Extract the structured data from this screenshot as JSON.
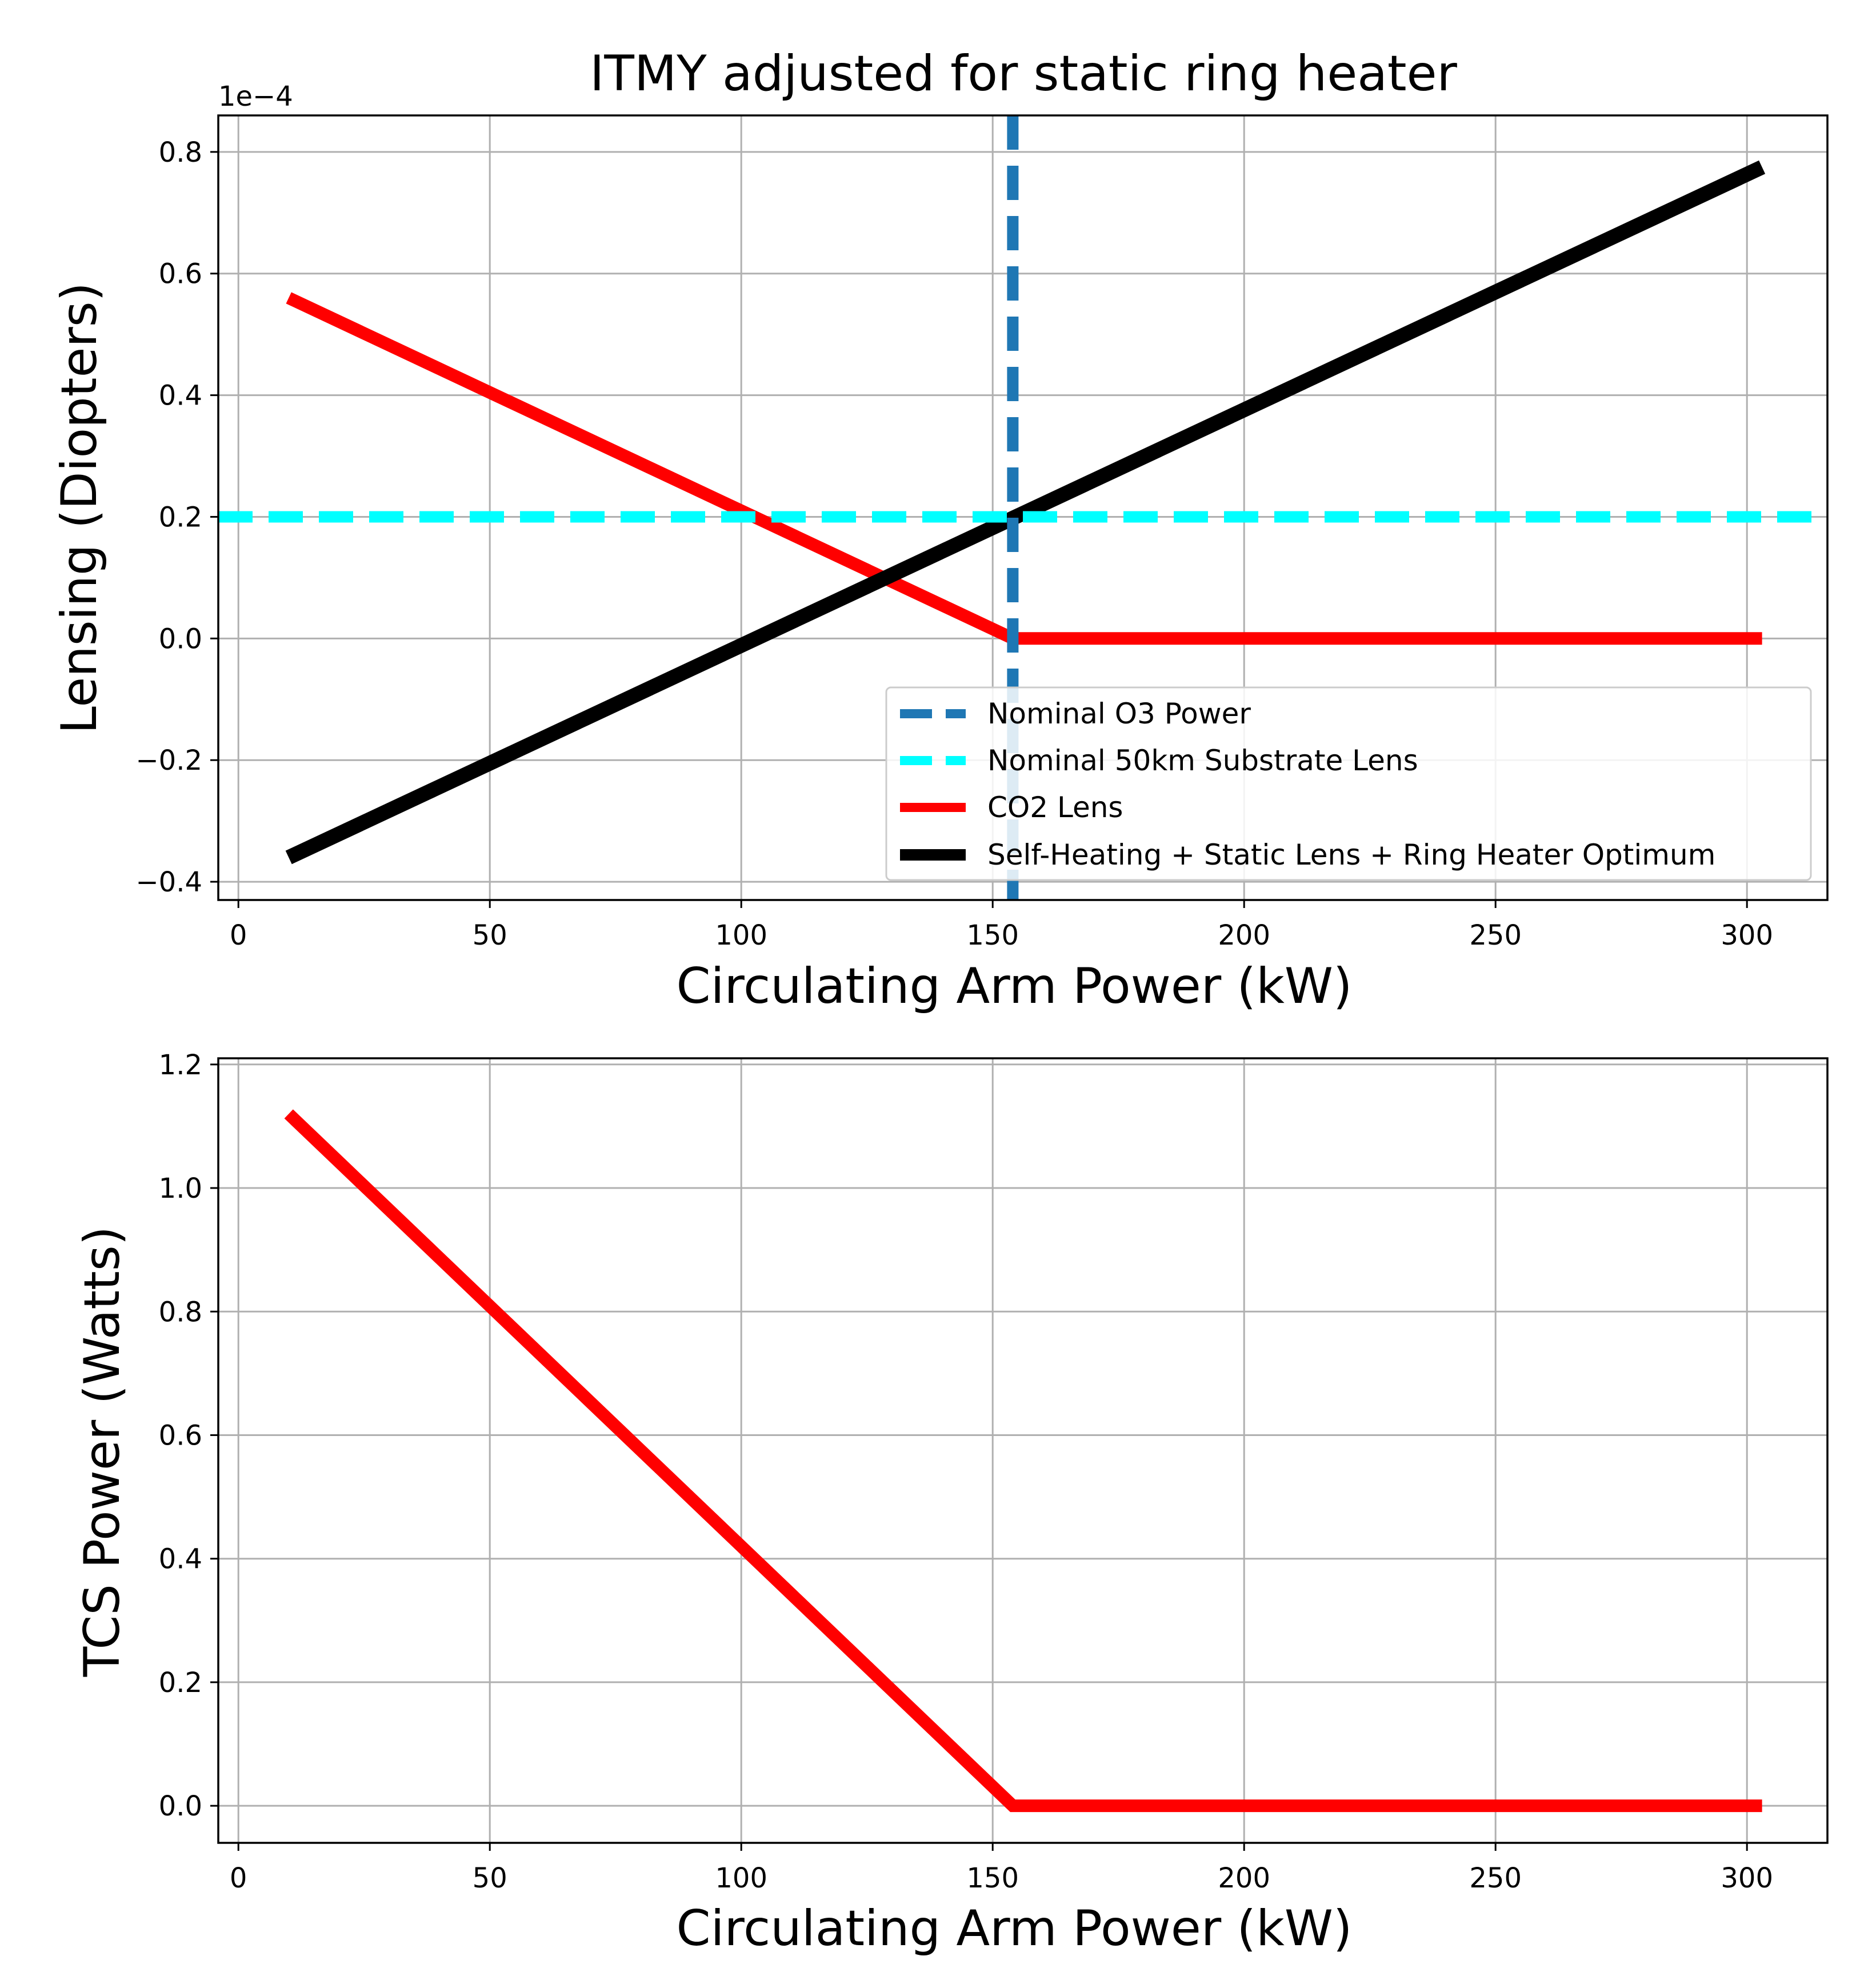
{
  "title": "ITMY adjusted for static ring heater",
  "chart_data": [
    {
      "type": "line",
      "title": "ITMY adjusted for static ring heater",
      "xlabel": "Circulating Arm Power (kW)",
      "ylabel": "Lensing (Diopters)",
      "offset_text": "1e−4",
      "xlim": [
        -4,
        316
      ],
      "ylim": [
        -0.43,
        0.86
      ],
      "xticks": [
        0,
        50,
        100,
        150,
        200,
        250,
        300
      ],
      "xtick_labels": [
        "0",
        "50",
        "100",
        "150",
        "200",
        "250",
        "300"
      ],
      "yticks": [
        -0.4,
        -0.2,
        0.0,
        0.2,
        0.4,
        0.6,
        0.8
      ],
      "ytick_labels": [
        "−0.4",
        "−0.2",
        "0.0",
        "0.2",
        "0.4",
        "0.6",
        "0.8"
      ],
      "grid": true,
      "legend_position": "lower right",
      "series": [
        {
          "name": "Nominal O3 Power",
          "kind": "vline",
          "x": 154,
          "color": "#1f77b4",
          "style": "dashed"
        },
        {
          "name": "Nominal 50km Substrate Lens",
          "kind": "hline",
          "y": 0.2,
          "color": "#00ffff",
          "style": "dashed"
        },
        {
          "name": "CO2 Lens",
          "kind": "line",
          "color": "#ff0000",
          "style": "solid",
          "x": [
            10,
            154,
            303
          ],
          "y": [
            0.56,
            0.0,
            0.0
          ]
        },
        {
          "name": "Self-Heating + Static Lens + Ring Heater Optimum",
          "kind": "line",
          "color": "#000000",
          "style": "solid",
          "x": [
            10,
            303
          ],
          "y": [
            -0.36,
            0.775
          ]
        }
      ]
    },
    {
      "type": "line",
      "title": "",
      "xlabel": "Circulating Arm Power (kW)",
      "ylabel": "TCS Power (Watts)",
      "xlim": [
        -4,
        316
      ],
      "ylim": [
        -0.06,
        1.21
      ],
      "xticks": [
        0,
        50,
        100,
        150,
        200,
        250,
        300
      ],
      "xtick_labels": [
        "0",
        "50",
        "100",
        "150",
        "200",
        "250",
        "300"
      ],
      "yticks": [
        0.0,
        0.2,
        0.4,
        0.6,
        0.8,
        1.0,
        1.2
      ],
      "ytick_labels": [
        "0.0",
        "0.2",
        "0.4",
        "0.6",
        "0.8",
        "1.0",
        "1.2"
      ],
      "grid": true,
      "series": [
        {
          "name": "",
          "kind": "line",
          "color": "#ff0000",
          "style": "solid",
          "x": [
            10,
            154,
            303
          ],
          "y": [
            1.12,
            0.0,
            0.0
          ]
        }
      ]
    }
  ]
}
